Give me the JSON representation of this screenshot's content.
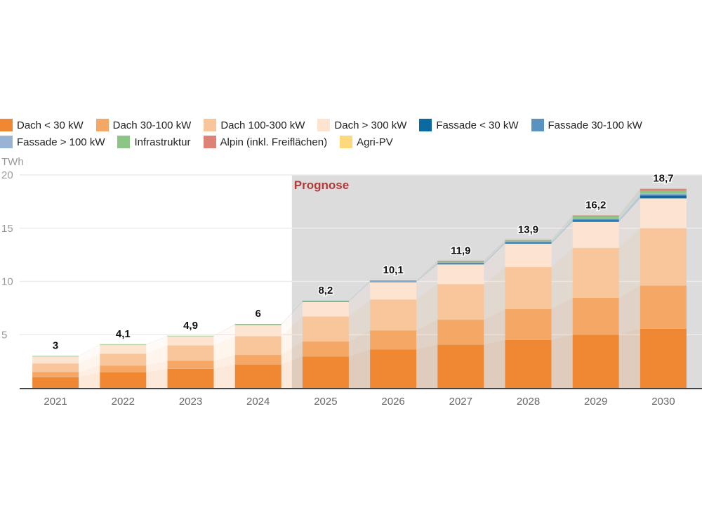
{
  "chart_data": {
    "type": "bar",
    "stacked": true,
    "title": "",
    "ylabel": "TWh",
    "xlabel": "",
    "ylim": [
      0,
      20
    ],
    "yticks": [
      5,
      10,
      15,
      20
    ],
    "grid": true,
    "legend_position": "top",
    "annotation": "Prognose",
    "forecast_start": "2025",
    "categories": [
      "2021",
      "2022",
      "2023",
      "2024",
      "2025",
      "2026",
      "2027",
      "2028",
      "2029",
      "2030"
    ],
    "totals": [
      3,
      4.1,
      4.9,
      6,
      8.2,
      10.1,
      11.9,
      13.9,
      16.2,
      18.7
    ],
    "total_labels": [
      "3",
      "4,1",
      "4,9",
      "6",
      "8,2",
      "10,1",
      "11,9",
      "13,9",
      "16,2",
      "18,7"
    ],
    "series": [
      {
        "name": "Dach < 30 kW",
        "color": "#f08732",
        "values": [
          1.0,
          1.45,
          1.8,
          2.2,
          2.95,
          3.6,
          4.05,
          4.5,
          5.0,
          5.55
        ]
      },
      {
        "name": "Dach 30-100 kW",
        "color": "#f5a866",
        "values": [
          0.5,
          0.65,
          0.75,
          0.9,
          1.4,
          1.8,
          2.35,
          2.9,
          3.45,
          4.05
        ]
      },
      {
        "name": "Dach 100-300 kW",
        "color": "#f9c59a",
        "values": [
          0.8,
          1.1,
          1.45,
          1.75,
          2.35,
          2.9,
          3.35,
          3.95,
          4.7,
          5.4
        ]
      },
      {
        "name": "Dach > 300 kW",
        "color": "#fde4d0",
        "values": [
          0.65,
          0.85,
          0.85,
          1.05,
          1.4,
          1.65,
          1.85,
          2.2,
          2.45,
          2.8
        ]
      },
      {
        "name": "Fassade < 30 kW",
        "color": "#0b6aa2",
        "values": [
          0,
          0,
          0,
          0,
          0.02,
          0.04,
          0.08,
          0.1,
          0.15,
          0.25
        ]
      },
      {
        "name": "Fassade 30-100 kW",
        "color": "#5a93c0",
        "values": [
          0,
          0,
          0,
          0,
          0.02,
          0.03,
          0.05,
          0.06,
          0.09,
          0.12
        ]
      },
      {
        "name": "Fassade > 100 kW",
        "color": "#98b3d6",
        "values": [
          0,
          0,
          0,
          0,
          0.01,
          0.02,
          0.04,
          0.05,
          0.07,
          0.1
        ]
      },
      {
        "name": "Infrastruktur",
        "color": "#8bc686",
        "values": [
          0.05,
          0.05,
          0.05,
          0.05,
          0.05,
          0.04,
          0.1,
          0.09,
          0.2,
          0.25
        ]
      },
      {
        "name": "Alpin (inkl. Freiflächen)",
        "color": "#de8275",
        "values": [
          0,
          0,
          0,
          0.05,
          0,
          0.02,
          0.08,
          0.05,
          0.09,
          0.18
        ]
      },
      {
        "name": "Agri-PV",
        "color": "#fdd97b",
        "values": [
          0,
          0,
          0,
          0,
          0,
          0,
          0,
          0,
          0,
          0
        ]
      }
    ]
  }
}
